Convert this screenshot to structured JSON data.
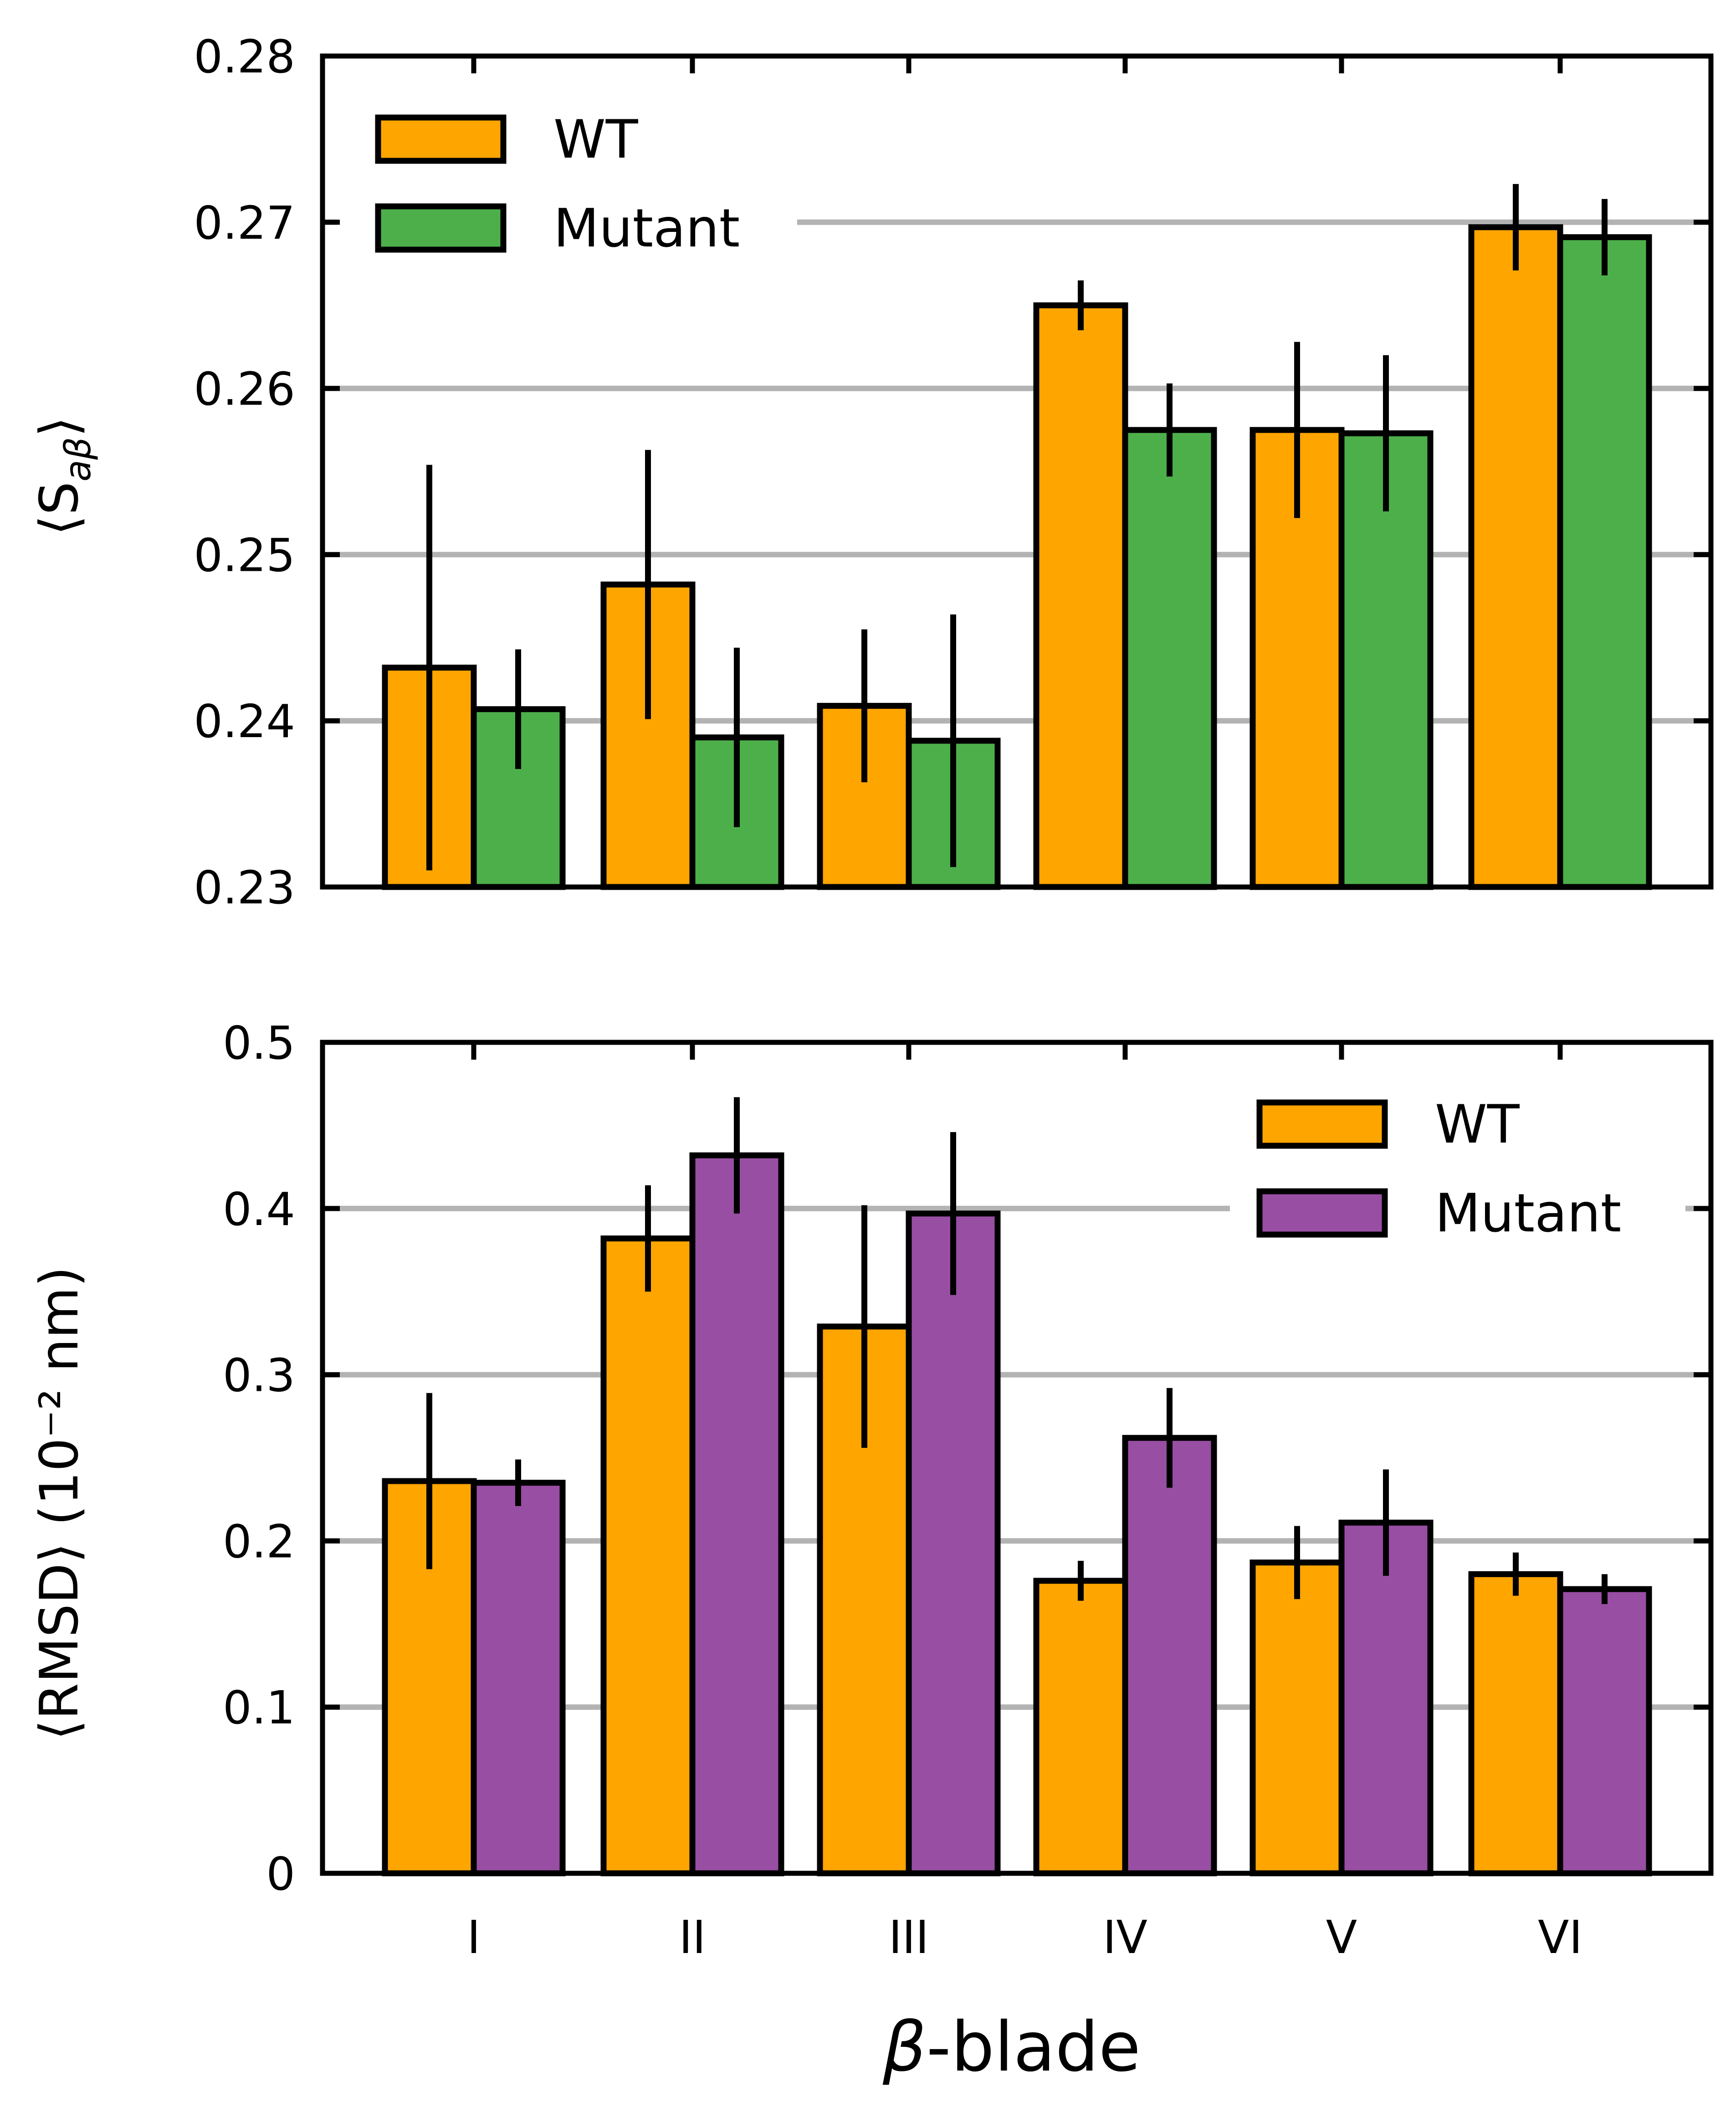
{
  "chart_data": [
    {
      "id": "top",
      "type": "bar",
      "categories": [
        "I",
        "II",
        "III",
        "IV",
        "V",
        "VI"
      ],
      "ylim": [
        0.23,
        0.28
      ],
      "yticks": [
        "0.23",
        "0.24",
        "0.25",
        "0.26",
        "0.27",
        "0.28"
      ],
      "ytick_values": [
        0.23,
        0.24,
        0.25,
        0.26,
        0.27,
        0.28
      ],
      "ylabel_prefix": "⟨S",
      "ylabel_sub": "aβ",
      "ylabel_suffix": "⟩",
      "legend_position": "top-left",
      "series": [
        {
          "name": "WT",
          "color": "#ffa500",
          "values": [
            0.2432,
            0.2482,
            0.2409,
            0.265,
            0.2575,
            0.2697
          ],
          "errors": [
            0.0122,
            0.0081,
            0.0046,
            0.0015,
            0.0053,
            0.0026
          ]
        },
        {
          "name": "Mutant",
          "color": "#4daf4a",
          "values": [
            0.2407,
            0.239,
            0.2388,
            0.2575,
            0.2573,
            0.2691
          ],
          "errors": [
            0.0036,
            0.0054,
            0.0076,
            0.0028,
            0.0047,
            0.0023
          ]
        }
      ]
    },
    {
      "id": "bottom",
      "type": "bar",
      "categories": [
        "I",
        "II",
        "III",
        "IV",
        "V",
        "VI"
      ],
      "ylim": [
        0,
        0.5
      ],
      "yticks": [
        "0",
        "0.1",
        "0.2",
        "0.3",
        "0.4",
        "0.5"
      ],
      "ytick_values": [
        0,
        0.1,
        0.2,
        0.3,
        0.4,
        0.5
      ],
      "ylabel": "⟨RMSD⟩ (10⁻² nm)",
      "xlabel_symbol": "β",
      "xlabel_rest": "-blade",
      "legend_position": "top-right",
      "series": [
        {
          "name": "WT",
          "color": "#ffa500",
          "values": [
            0.236,
            0.382,
            0.329,
            0.176,
            0.187,
            0.18
          ],
          "errors": [
            0.053,
            0.032,
            0.073,
            0.012,
            0.022,
            0.013
          ]
        },
        {
          "name": "Mutant",
          "color": "#984ea3",
          "values": [
            0.235,
            0.432,
            0.397,
            0.262,
            0.211,
            0.171
          ],
          "errors": [
            0.014,
            0.035,
            0.049,
            0.03,
            0.032,
            0.009
          ]
        }
      ]
    }
  ]
}
